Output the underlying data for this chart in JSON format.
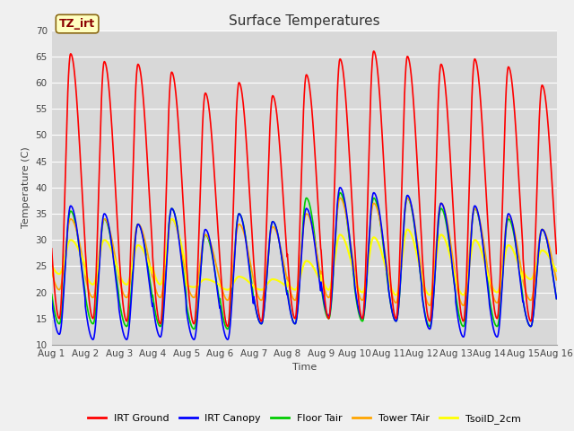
{
  "title": "Surface Temperatures",
  "xlabel": "Time",
  "ylabel": "Temperature (C)",
  "ylim": [
    10,
    70
  ],
  "yticks": [
    10,
    15,
    20,
    25,
    30,
    35,
    40,
    45,
    50,
    55,
    60,
    65,
    70
  ],
  "num_days": 15,
  "annotation_text": "TZ_irt",
  "annotation_box_color": "#FFFFC0",
  "annotation_border_color": "#8B6914",
  "annotation_text_color": "#8B0000",
  "series": {
    "IRT Ground": {
      "color": "#FF0000",
      "lw": 1.2
    },
    "IRT Canopy": {
      "color": "#0000FF",
      "lw": 1.2
    },
    "Floor Tair": {
      "color": "#00CC00",
      "lw": 1.2
    },
    "Tower TAir": {
      "color": "#FFA500",
      "lw": 1.2
    },
    "TsoilD_2cm": {
      "color": "#FFFF00",
      "lw": 1.5
    }
  },
  "bg_color": "#D8D8D8",
  "fig_bg_color": "#F0F0F0",
  "grid_color": "#FFFFFF",
  "points_per_day": 96,
  "irt_peaks": [
    65.5,
    64.0,
    63.5,
    62.0,
    58.0,
    60.0,
    57.5,
    61.5,
    64.5,
    66.0,
    65.0,
    63.5,
    64.5,
    63.0,
    59.5
  ],
  "irt_mins": [
    15.0,
    15.0,
    14.5,
    14.0,
    14.0,
    13.5,
    14.5,
    15.0,
    15.0,
    15.0,
    15.0,
    14.5,
    14.5,
    15.0,
    14.5
  ],
  "can_peaks": [
    36.5,
    35.0,
    33.0,
    36.0,
    32.0,
    35.0,
    33.5,
    36.0,
    40.0,
    39.0,
    38.5,
    37.0,
    36.5,
    35.0,
    32.0
  ],
  "can_mins": [
    12.0,
    11.0,
    11.0,
    11.5,
    11.0,
    11.0,
    14.0,
    14.0,
    15.5,
    15.0,
    14.5,
    13.0,
    11.5,
    11.5,
    13.5
  ],
  "floor_peaks": [
    35.5,
    34.0,
    33.0,
    36.0,
    31.0,
    35.0,
    33.5,
    38.0,
    39.0,
    38.0,
    38.0,
    36.0,
    36.0,
    34.0,
    32.0
  ],
  "floor_mins": [
    14.0,
    14.0,
    13.5,
    13.5,
    13.0,
    13.0,
    14.0,
    14.0,
    15.0,
    14.5,
    14.5,
    13.5,
    13.5,
    13.5,
    13.5
  ],
  "tower_peaks": [
    34.0,
    34.0,
    33.0,
    34.0,
    31.0,
    33.0,
    32.5,
    35.0,
    38.0,
    37.0,
    38.0,
    37.0,
    36.0,
    34.5,
    32.0
  ],
  "tower_mins": [
    20.5,
    19.0,
    19.0,
    19.0,
    19.0,
    18.5,
    18.5,
    18.5,
    19.0,
    18.5,
    18.0,
    17.5,
    17.5,
    18.0,
    18.5
  ],
  "soil_peaks": [
    30.0,
    30.0,
    29.0,
    34.0,
    22.5,
    23.0,
    22.5,
    26.0,
    31.0,
    30.5,
    32.0,
    31.0,
    30.0,
    29.0,
    28.0
  ],
  "soil_mins": [
    23.5,
    21.5,
    21.5,
    21.5,
    21.0,
    20.5,
    20.5,
    20.5,
    20.5,
    20.0,
    19.5,
    19.5,
    19.5,
    20.0,
    22.5
  ]
}
